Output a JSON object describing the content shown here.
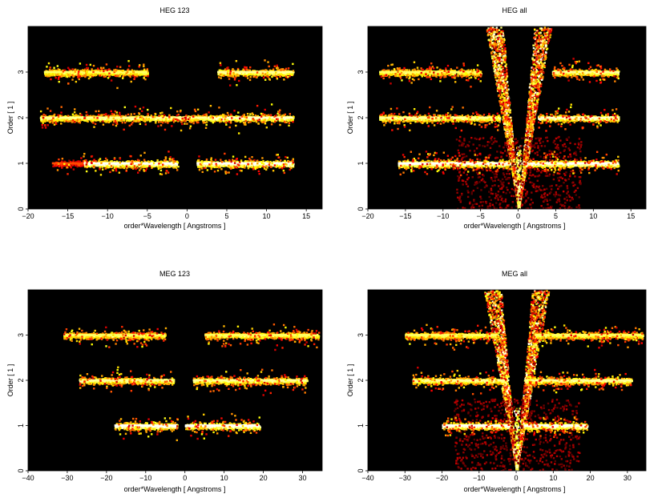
{
  "chart_data": [
    {
      "type": "heatmap",
      "title": "HEG 123",
      "xlabel": "order*Wavelength [ Angstroms ]",
      "ylabel": "Order [ 1 ]",
      "xlim": [
        -20,
        17
      ],
      "ylim": [
        0,
        4
      ],
      "xticks": [
        -20,
        -15,
        -10,
        -5,
        0,
        5,
        10,
        15
      ],
      "yticks": [
        0,
        1,
        2,
        3
      ],
      "colormap": "hot",
      "background": "#000000",
      "bands": [
        {
          "order": 1,
          "x": [
            -17,
            -13
          ],
          "intensity": 0.45
        },
        {
          "order": 1,
          "x": [
            -13,
            -1.2
          ],
          "intensity": 1.0
        },
        {
          "order": 1,
          "x": [
            1.2,
            13.3
          ],
          "intensity": 1.0
        },
        {
          "order": 2,
          "x": [
            -18.5,
            2.5
          ],
          "intensity": 0.9
        },
        {
          "order": 2,
          "x": [
            2.6,
            13.3
          ],
          "intensity": 0.95
        },
        {
          "order": 3,
          "x": [
            -18,
            -5
          ],
          "intensity": 0.85
        },
        {
          "order": 3,
          "x": [
            3.8,
            13.3
          ],
          "intensity": 0.9
        }
      ],
      "wedge": false
    },
    {
      "type": "heatmap",
      "title": "HEG all",
      "xlabel": "order*Wavelength [ Angstroms ]",
      "ylabel": "Order [ 1 ]",
      "xlim": [
        -20,
        17
      ],
      "ylim": [
        0,
        4
      ],
      "xticks": [
        -20,
        -15,
        -10,
        -5,
        0,
        5,
        10,
        15
      ],
      "yticks": [
        0,
        1,
        2,
        3
      ],
      "colormap": "hot",
      "background": "#000000",
      "bands": [
        {
          "order": 1,
          "x": [
            -16,
            -1.2
          ],
          "intensity": 1.0
        },
        {
          "order": 1,
          "x": [
            1.2,
            13.3
          ],
          "intensity": 1.0
        },
        {
          "order": 2,
          "x": [
            -18.5,
            -2.5
          ],
          "intensity": 0.9
        },
        {
          "order": 2,
          "x": [
            2.6,
            13.3
          ],
          "intensity": 0.95
        },
        {
          "order": 3,
          "x": [
            -18.5,
            -5
          ],
          "intensity": 0.85
        },
        {
          "order": 3,
          "x": [
            4.5,
            13.3
          ],
          "intensity": 0.9
        }
      ],
      "wedge": true,
      "wedge_slope": 0.95
    },
    {
      "type": "heatmap",
      "title": "MEG 123",
      "xlabel": "order*Wavelength [ Angstroms ]",
      "ylabel": "Order [ 1 ]",
      "xlim": [
        -40,
        35
      ],
      "ylim": [
        0,
        4
      ],
      "xticks": [
        -40,
        -30,
        -20,
        -10,
        0,
        10,
        20,
        30
      ],
      "yticks": [
        0,
        1,
        2,
        3
      ],
      "colormap": "hot",
      "background": "#000000",
      "bands": [
        {
          "order": 1,
          "x": [
            -18,
            -2
          ],
          "intensity": 1.0
        },
        {
          "order": 1,
          "x": [
            0,
            19
          ],
          "intensity": 1.0
        },
        {
          "order": 2,
          "x": [
            -27,
            -3
          ],
          "intensity": 0.9
        },
        {
          "order": 2,
          "x": [
            2,
            31
          ],
          "intensity": 0.9
        },
        {
          "order": 3,
          "x": [
            -31,
            -5
          ],
          "intensity": 0.85
        },
        {
          "order": 3,
          "x": [
            5,
            34
          ],
          "intensity": 0.85
        }
      ],
      "wedge": false
    },
    {
      "type": "heatmap",
      "title": "MEG all",
      "xlabel": "order*Wavelength [ Angstroms ]",
      "ylabel": "Order [ 1 ]",
      "xlim": [
        -40,
        35
      ],
      "ylim": [
        0,
        4
      ],
      "xticks": [
        -40,
        -30,
        -20,
        -10,
        0,
        10,
        20,
        30
      ],
      "yticks": [
        0,
        1,
        2,
        3
      ],
      "colormap": "hot",
      "background": "#000000",
      "bands": [
        {
          "order": 1,
          "x": [
            -20,
            -2
          ],
          "intensity": 1.0
        },
        {
          "order": 1,
          "x": [
            2,
            19
          ],
          "intensity": 1.0
        },
        {
          "order": 2,
          "x": [
            -28,
            -3
          ],
          "intensity": 0.9
        },
        {
          "order": 2,
          "x": [
            2.5,
            31
          ],
          "intensity": 0.9
        },
        {
          "order": 3,
          "x": [
            -30,
            -5
          ],
          "intensity": 0.85
        },
        {
          "order": 3,
          "x": [
            5,
            34
          ],
          "intensity": 0.85
        }
      ],
      "wedge": true,
      "wedge_slope": 1.9
    }
  ]
}
